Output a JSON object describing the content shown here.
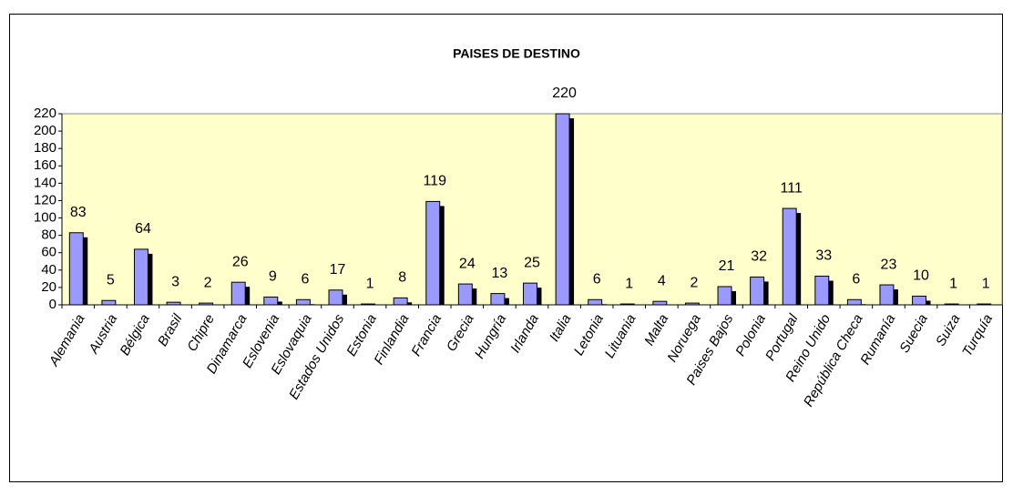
{
  "chart_data": {
    "type": "bar",
    "title": "PAISES DE DESTINO",
    "categories": [
      "Alemania",
      "Austria",
      "Bélgica",
      "Brasil",
      "Chipre",
      "Dinamarca",
      "Eslovenia",
      "Eslovaquia",
      "Estados Unidos",
      "Estonia",
      "Finlandia",
      "Francia",
      "Grecia",
      "Hungría",
      "Irlanda",
      "Italia",
      "Letonia",
      "Lituania",
      "Malta",
      "Noruega",
      "Paises Bajos",
      "Polonia",
      "Portugal",
      "Reino Unido",
      "República Checa",
      "Rumanía",
      "Suecia",
      "Suiza",
      "Turquía"
    ],
    "values": [
      83,
      5,
      64,
      3,
      2,
      26,
      9,
      6,
      17,
      1,
      8,
      119,
      24,
      13,
      25,
      220,
      6,
      1,
      4,
      2,
      21,
      32,
      111,
      33,
      6,
      23,
      10,
      1,
      1
    ],
    "color": "#9999ff",
    "ylim": [
      0,
      220
    ],
    "yticks": [
      0,
      20,
      40,
      60,
      80,
      100,
      120,
      140,
      160,
      180,
      200,
      220
    ],
    "grid": false
  }
}
